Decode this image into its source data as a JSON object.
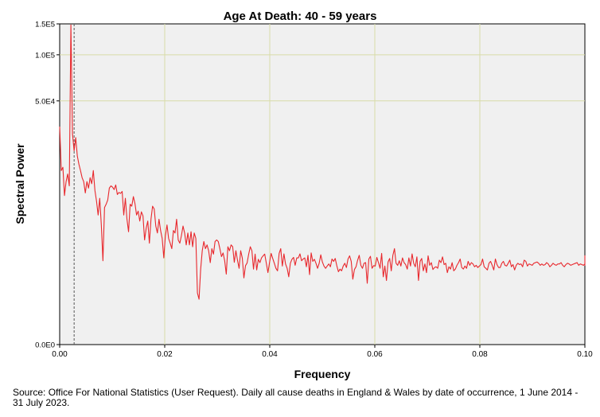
{
  "chart_data": {
    "type": "line",
    "title": "Age At Death: 40 - 59 years",
    "xlabel": "Frequency",
    "ylabel": "Spectral Power",
    "xlim": [
      0.0,
      0.1
    ],
    "ylim": [
      0,
      150000
    ],
    "x_ticks": [
      {
        "value": 0.0,
        "label": "0.00"
      },
      {
        "value": 0.02,
        "label": "0.02"
      },
      {
        "value": 0.04,
        "label": "0.04"
      },
      {
        "value": 0.06,
        "label": "0.06"
      },
      {
        "value": 0.08,
        "label": "0.08"
      },
      {
        "value": 0.1,
        "label": "0.10"
      }
    ],
    "y_ticks": [
      {
        "value": 0,
        "label": "0.0E0"
      },
      {
        "value": 50000,
        "label": "5.0E4"
      },
      {
        "value": 100000,
        "label": "1.0E5"
      },
      {
        "value": 150000,
        "label": "1.5E5"
      }
    ],
    "y_scale_note": "non-linear (compressive) vertical scale",
    "grid": true,
    "reference_line": {
      "x": 0.00275,
      "style": "dashed"
    },
    "colors": {
      "series": "#e8272c",
      "plot_background": "#f0f0f0",
      "gridline": "#d8dba8",
      "reference": "#555555"
    },
    "series": [
      {
        "name": "Spectral Power",
        "x_start": 0.0,
        "x_step": 0.000305,
        "values": [
          32000,
          13000,
          14000,
          7000,
          10000,
          12000,
          9000,
          148000,
          28000,
          20000,
          26000,
          18000,
          15000,
          13000,
          11000,
          10000,
          7500,
          10000,
          8500,
          11000,
          9500,
          13000,
          8000,
          6000,
          4000,
          6500,
          2900,
          700,
          5000,
          5500,
          6200,
          8500,
          9000,
          8700,
          8200,
          9200,
          7200,
          7600,
          7400,
          7800,
          4000,
          6500,
          3500,
          2300,
          5500,
          5200,
          6800,
          5600,
          4000,
          4500,
          3300,
          4400,
          3900,
          1700,
          2600,
          3300,
          1500,
          3500,
          5200,
          4800,
          2800,
          2200,
          3500,
          2400,
          1800,
          800,
          2000,
          2900,
          1800,
          1500,
          1200,
          2400,
          2200,
          3500,
          1700,
          1500,
          2000,
          2800,
          2200,
          1400,
          2200,
          1400,
          2300,
          1300,
          2200,
          1800,
          100,
          60,
          450,
          1100,
          1600,
          1200,
          1400,
          1100,
          640,
          1200,
          950,
          1600,
          1700,
          1600,
          1200,
          850,
          1000,
          700,
          350,
          1300,
          1100,
          1400,
          1300,
          650,
          1100,
          720,
          480,
          1100,
          800,
          280,
          550,
          630,
          950,
          1300,
          1100,
          460,
          950,
          440,
          750,
          640,
          800,
          880,
          950,
          620,
          380,
          640,
          980,
          780,
          620,
          480,
          420,
          980,
          1200,
          540,
          960,
          600,
          480,
          300,
          620,
          750,
          820,
          560,
          800,
          800,
          960,
          700,
          760,
          800,
          520,
          900,
          340,
          1000,
          680,
          750,
          620,
          480,
          620,
          920,
          660,
          540,
          480,
          540,
          600,
          520,
          760,
          680,
          780,
          550,
          400,
          460,
          420,
          540,
          620,
          500,
          760,
          880,
          680,
          260,
          450,
          520,
          720,
          900,
          560,
          480,
          620,
          640,
          200,
          760,
          860,
          480,
          550,
          540,
          820,
          640,
          480,
          980,
          300,
          540,
          240,
          660,
          780,
          420,
          900,
          1200,
          620,
          560,
          700,
          540,
          800,
          640,
          580,
          460,
          800,
          540,
          960,
          620,
          520,
          840,
          240,
          680,
          780,
          420,
          600,
          380,
          880,
          560,
          640,
          450,
          500,
          520,
          480,
          720,
          640,
          840,
          580,
          620,
          380,
          520,
          460,
          640,
          420,
          460,
          560,
          640,
          760,
          500,
          460,
          540,
          480,
          680,
          560,
          640,
          600,
          520,
          560,
          500,
          540,
          580,
          760,
          520,
          480,
          440,
          620,
          680,
          560,
          440,
          760,
          580,
          500,
          500,
          620,
          680,
          560,
          540,
          620,
          720,
          520,
          580,
          440,
          560,
          620,
          580,
          600,
          520,
          720,
          680,
          540,
          600,
          580,
          560,
          620,
          640,
          660,
          620,
          560,
          600,
          560,
          580,
          640,
          600,
          520,
          560,
          620,
          580,
          560,
          600,
          600,
          640,
          560,
          520,
          580,
          620,
          600,
          560,
          580,
          600,
          620,
          640,
          560,
          600,
          580,
          560,
          600,
          600,
          560,
          620,
          580,
          600,
          620,
          580,
          560,
          600,
          900
        ]
      }
    ]
  },
  "source_note": "Source: Office For National Statistics (User Request). Daily all cause deaths in England & Wales by date of occurrence, 1 June 2014 - 31 July 2023."
}
